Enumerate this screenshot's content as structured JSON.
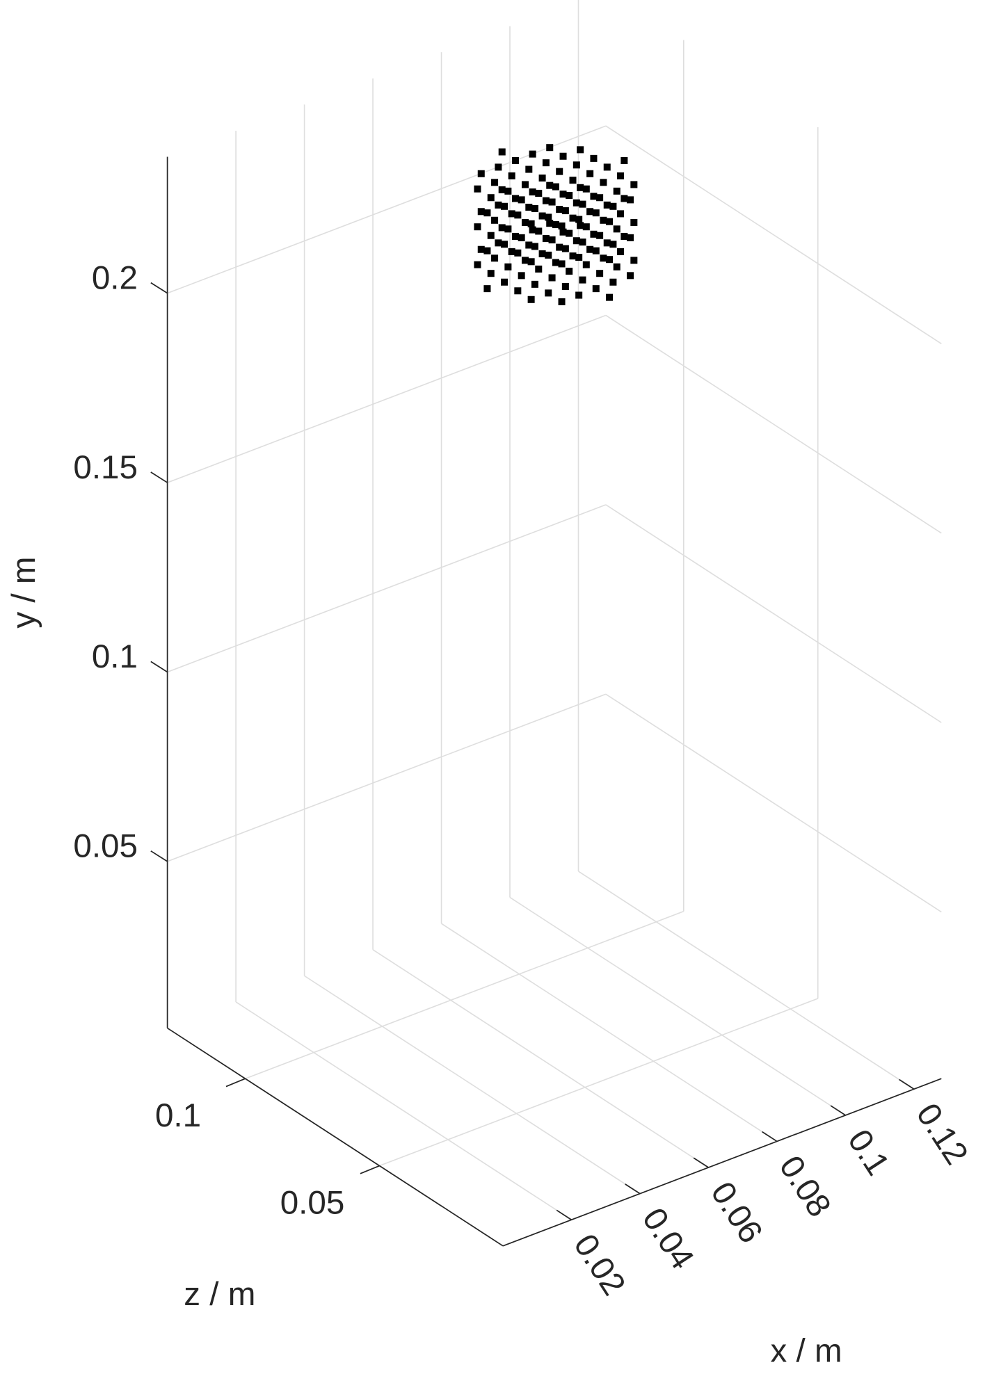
{
  "chart_data": {
    "type": "scatter3d",
    "xlabel": "x / m",
    "ylabel": "y / m",
    "zlabel": "z / m",
    "xlim": [
      0,
      0.128
    ],
    "ylim": [
      0.006,
      0.236
    ],
    "zlim": [
      0.004,
      0.129
    ],
    "xticks": [
      0.02,
      0.04,
      0.06,
      0.08,
      0.1,
      0.12
    ],
    "yticks": [
      0.05,
      0.1,
      0.15,
      0.2
    ],
    "zticks": [
      0.05,
      0.1
    ],
    "grid": true,
    "color": "#000000",
    "x": [
      0.064,
      0.054,
      0.059,
      0.064,
      0.069,
      0.074,
      0.049,
      0.054,
      0.059,
      0.064,
      0.069,
      0.074,
      0.079,
      0.049,
      0.054,
      0.059,
      0.064,
      0.069,
      0.074,
      0.079,
      0.044,
      0.049,
      0.054,
      0.059,
      0.064,
      0.069,
      0.074,
      0.079,
      0.084,
      0.049,
      0.054,
      0.059,
      0.064,
      0.069,
      0.074,
      0.079,
      0.049,
      0.054,
      0.059,
      0.064,
      0.069,
      0.074,
      0.079,
      0.054,
      0.059,
      0.064,
      0.069,
      0.074,
      0.064,
      0.064,
      0.054,
      0.059,
      0.064,
      0.069,
      0.074,
      0.049,
      0.054,
      0.059,
      0.064,
      0.069,
      0.074,
      0.079,
      0.049,
      0.054,
      0.059,
      0.064,
      0.069,
      0.074,
      0.079,
      0.044,
      0.049,
      0.054,
      0.059,
      0.064,
      0.069,
      0.074,
      0.079,
      0.084,
      0.049,
      0.054,
      0.059,
      0.064,
      0.069,
      0.074,
      0.079,
      0.049,
      0.054,
      0.059,
      0.064,
      0.069,
      0.074,
      0.079,
      0.054,
      0.059,
      0.064,
      0.069,
      0.074,
      0.064,
      0.064,
      0.054,
      0.059,
      0.064,
      0.069,
      0.074,
      0.049,
      0.054,
      0.059,
      0.064,
      0.069,
      0.074,
      0.079,
      0.049,
      0.054,
      0.059,
      0.064,
      0.069,
      0.074,
      0.079,
      0.044,
      0.049,
      0.054,
      0.059,
      0.064,
      0.069,
      0.074,
      0.079,
      0.084,
      0.049,
      0.054,
      0.059,
      0.064,
      0.069,
      0.074,
      0.079,
      0.049,
      0.054,
      0.059,
      0.064,
      0.069,
      0.074,
      0.079,
      0.054,
      0.059,
      0.064,
      0.069,
      0.074,
      0.064
    ],
    "y": [
      0.215,
      0.215,
      0.215,
      0.215,
      0.215,
      0.215,
      0.215,
      0.215,
      0.215,
      0.215,
      0.215,
      0.215,
      0.215,
      0.215,
      0.215,
      0.215,
      0.215,
      0.215,
      0.215,
      0.215,
      0.215,
      0.215,
      0.215,
      0.215,
      0.215,
      0.215,
      0.215,
      0.215,
      0.215,
      0.215,
      0.215,
      0.215,
      0.215,
      0.215,
      0.215,
      0.215,
      0.215,
      0.215,
      0.215,
      0.215,
      0.215,
      0.215,
      0.215,
      0.215,
      0.215,
      0.215,
      0.215,
      0.215,
      0.215,
      0.225,
      0.225,
      0.225,
      0.225,
      0.225,
      0.225,
      0.225,
      0.225,
      0.225,
      0.225,
      0.225,
      0.225,
      0.225,
      0.225,
      0.225,
      0.225,
      0.225,
      0.225,
      0.225,
      0.225,
      0.225,
      0.225,
      0.225,
      0.225,
      0.225,
      0.225,
      0.225,
      0.225,
      0.225,
      0.225,
      0.225,
      0.225,
      0.225,
      0.225,
      0.225,
      0.225,
      0.225,
      0.225,
      0.225,
      0.225,
      0.225,
      0.225,
      0.225,
      0.225,
      0.225,
      0.225,
      0.225,
      0.225,
      0.225,
      0.235,
      0.235,
      0.235,
      0.235,
      0.235,
      0.235,
      0.235,
      0.235,
      0.235,
      0.235,
      0.235,
      0.235,
      0.235,
      0.235,
      0.235,
      0.235,
      0.235,
      0.235,
      0.235,
      0.235,
      0.235,
      0.235,
      0.235,
      0.235,
      0.235,
      0.235,
      0.235,
      0.235,
      0.235,
      0.235,
      0.235,
      0.235,
      0.235,
      0.235,
      0.235,
      0.235,
      0.235,
      0.235,
      0.235,
      0.235,
      0.235,
      0.235,
      0.235,
      0.235,
      0.235,
      0.235,
      0.235,
      0.235,
      0.235
    ],
    "z": [
      0.046,
      0.051,
      0.051,
      0.051,
      0.051,
      0.051,
      0.056,
      0.056,
      0.056,
      0.056,
      0.056,
      0.056,
      0.056,
      0.061,
      0.061,
      0.061,
      0.061,
      0.061,
      0.061,
      0.061,
      0.066,
      0.066,
      0.066,
      0.066,
      0.066,
      0.066,
      0.066,
      0.066,
      0.066,
      0.071,
      0.071,
      0.071,
      0.071,
      0.071,
      0.071,
      0.071,
      0.076,
      0.076,
      0.076,
      0.076,
      0.076,
      0.076,
      0.076,
      0.081,
      0.081,
      0.081,
      0.081,
      0.081,
      0.086,
      0.046,
      0.051,
      0.051,
      0.051,
      0.051,
      0.051,
      0.056,
      0.056,
      0.056,
      0.056,
      0.056,
      0.056,
      0.056,
      0.061,
      0.061,
      0.061,
      0.061,
      0.061,
      0.061,
      0.061,
      0.066,
      0.066,
      0.066,
      0.066,
      0.066,
      0.066,
      0.066,
      0.066,
      0.066,
      0.071,
      0.071,
      0.071,
      0.071,
      0.071,
      0.071,
      0.071,
      0.076,
      0.076,
      0.076,
      0.076,
      0.076,
      0.076,
      0.076,
      0.081,
      0.081,
      0.081,
      0.081,
      0.081,
      0.086,
      0.046,
      0.051,
      0.051,
      0.051,
      0.051,
      0.051,
      0.056,
      0.056,
      0.056,
      0.056,
      0.056,
      0.056,
      0.056,
      0.061,
      0.061,
      0.061,
      0.061,
      0.061,
      0.061,
      0.061,
      0.066,
      0.066,
      0.066,
      0.066,
      0.066,
      0.066,
      0.066,
      0.066,
      0.066,
      0.071,
      0.071,
      0.071,
      0.071,
      0.071,
      0.071,
      0.071,
      0.076,
      0.076,
      0.076,
      0.076,
      0.076,
      0.076,
      0.076,
      0.081,
      0.081,
      0.081,
      0.081,
      0.081,
      0.086
    ]
  }
}
